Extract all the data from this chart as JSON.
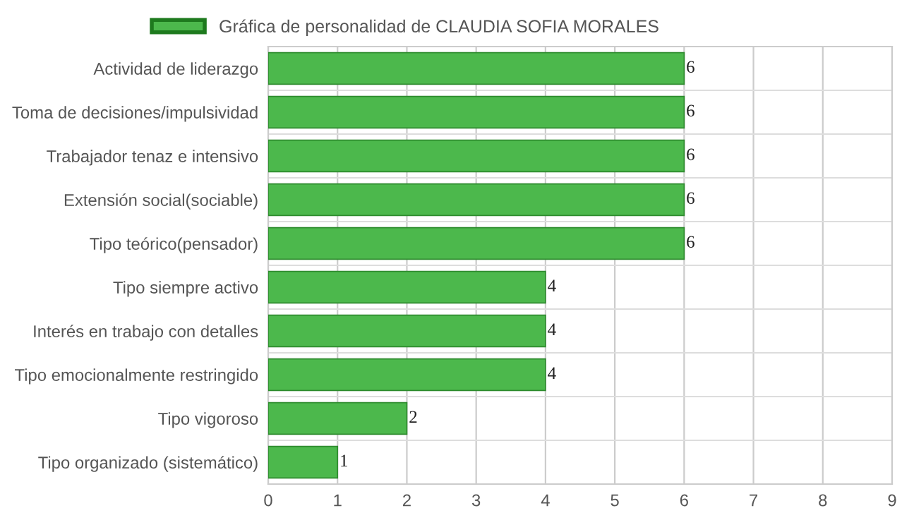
{
  "chart_data": {
    "type": "bar",
    "orientation": "horizontal",
    "categories": [
      "Actividad de liderazgo",
      "Toma de decisiones/impulsividad",
      "Trabajador tenaz e intensivo",
      "Extensión social(sociable)",
      "Tipo teórico(pensador)",
      "Tipo siempre activo",
      "Interés en trabajo con detalles",
      "Tipo emocionalmente restringido",
      "Tipo vigoroso",
      "Tipo organizado (sistemático)"
    ],
    "series": [
      {
        "name": "Gráfica de personalidad de CLAUDIA SOFIA MORALES",
        "color": "#4cb84c",
        "values": [
          6,
          6,
          6,
          6,
          6,
          4,
          4,
          4,
          2,
          1
        ]
      }
    ],
    "xlim": [
      0,
      9
    ],
    "xticks": [
      0,
      1,
      2,
      3,
      4,
      5,
      6,
      7,
      8,
      9
    ],
    "grid": true,
    "legend": "top",
    "data_labels": true
  }
}
